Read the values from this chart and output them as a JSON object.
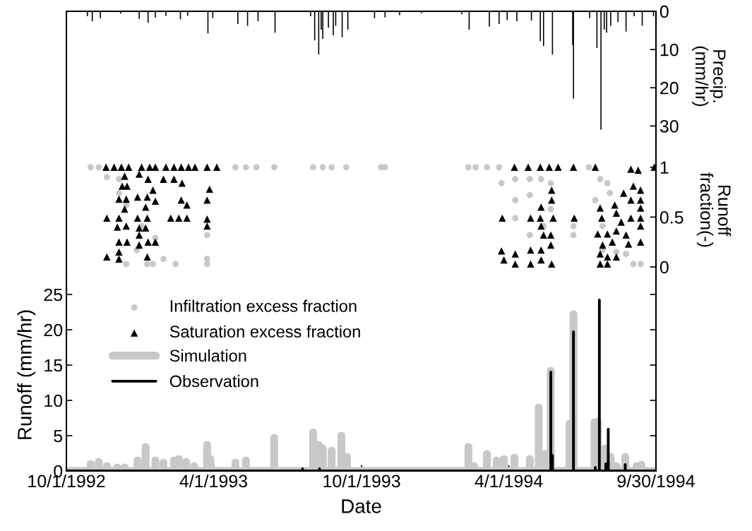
{
  "chart_data": [
    {
      "type": "bar",
      "ylabel": "Precip.\n(mm/hr)",
      "xlim": [
        "1992-10-01",
        "1994-09-30"
      ],
      "ylim": [
        34,
        0
      ],
      "yticks": [
        0,
        10,
        20,
        30
      ],
      "tick_labels": "y",
      "series": [
        {
          "color": "#000000",
          "x": [
            "1992-10-27",
            "1992-11-02",
            "1992-11-12",
            "1992-12-07",
            "1992-12-30",
            "1993-01-10",
            "1993-01-19",
            "1993-02-01",
            "1993-02-19",
            "1993-02-28",
            "1993-03-25",
            "1993-03-31",
            "1993-05-01",
            "1993-05-13",
            "1993-05-26",
            "1993-06-16",
            "1993-07-30",
            "1993-08-04",
            "1993-08-09",
            "1993-08-12",
            "1993-08-14",
            "1993-08-21",
            "1993-08-27",
            "1993-08-30",
            "1993-09-07",
            "1993-09-14",
            "1993-10-17",
            "1993-10-30",
            "1993-11-17",
            "1993-12-14",
            "1994-02-02",
            "1994-02-11",
            "1994-03-08",
            "1994-03-20",
            "1994-03-30",
            "1994-04-11",
            "1994-04-29",
            "1994-05-10",
            "1994-05-14",
            "1994-05-25",
            "1994-06-19",
            "1994-06-20",
            "1994-07-10",
            "1994-07-19",
            "1994-07-24",
            "1994-07-28",
            "1994-07-31",
            "1994-08-05",
            "1994-08-14",
            "1994-08-24",
            "1994-09-03",
            "1994-09-13",
            "1994-09-27"
          ],
          "values": [
            1.3,
            2.6,
            1.8,
            0.6,
            2.0,
            3.0,
            1.6,
            1.2,
            2.1,
            1.2,
            5.8,
            1.8,
            3.3,
            3.8,
            2.6,
            5.6,
            1.3,
            7.6,
            11.3,
            4.8,
            7.2,
            4.3,
            6.3,
            3.8,
            6.8,
            4.8,
            1.8,
            1.6,
            1.0,
            0.5,
            0.8,
            4.8,
            4.0,
            3.3,
            2.3,
            2.6,
            2.4,
            7.8,
            9.1,
            11.3,
            8.8,
            22.8,
            1.8,
            9.6,
            31.0,
            4.8,
            5.6,
            3.8,
            2.8,
            5.3,
            1.3,
            3.8,
            1.3
          ]
        }
      ]
    },
    {
      "type": "scatter",
      "legend": "bottom left",
      "ylabel": "Runoff\nfraction(-)",
      "xlim": [
        "1992-10-01",
        "1994-09-30"
      ],
      "ylim": [
        -0.12,
        1.26
      ],
      "yticks": [
        0,
        0.5,
        1
      ],
      "tick_labels": "y",
      "series": [
        {
          "name": "Infiltration excess fraction",
          "color": "#c8c8c8",
          "marker": "circle",
          "x": [
            "1992-10-31",
            "1992-11-10",
            "1992-11-20",
            "1992-12-05",
            "1992-12-05",
            "1992-12-14",
            "1992-12-14",
            "1992-12-27",
            "1993-01-02",
            "1993-01-09",
            "1993-01-16",
            "1993-01-19",
            "1993-01-29",
            "1993-02-13",
            "1993-03-24",
            "1993-03-24",
            "1993-03-24",
            "1993-04-28",
            "1993-05-11",
            "1993-05-24",
            "1993-06-15",
            "1993-08-02",
            "1993-08-14",
            "1993-08-25",
            "1993-09-12",
            "1993-10-25",
            "1993-10-30",
            "1994-02-10",
            "1994-02-19",
            "1994-03-05",
            "1994-03-20",
            "1994-03-23",
            "1994-04-09",
            "1994-04-09",
            "1994-04-09",
            "1994-04-27",
            "1994-04-27",
            "1994-05-11",
            "1994-05-23",
            "1994-05-23",
            "1994-04-27",
            "1994-05-14",
            "1994-06-20",
            "1994-06-20",
            "1994-07-09",
            "1994-07-17",
            "1994-07-23",
            "1994-08-01",
            "1994-08-04",
            "1994-07-26",
            "1994-07-26",
            "1994-08-12",
            "1994-08-24",
            "1994-09-02",
            "1994-09-11"
          ],
          "values": [
            1,
            1,
            0.9,
            0.88,
            0.74,
            0.03,
            0.62,
            0.17,
            0.41,
            0.03,
            0.03,
            0.29,
            0.08,
            0.03,
            0.32,
            0.08,
            0.03,
            1,
            1,
            1,
            1,
            1,
            1,
            1,
            1,
            1,
            1,
            1,
            1,
            1,
            1,
            0.84,
            0.88,
            0.67,
            0.49,
            0.88,
            0.72,
            0.88,
            0.84,
            0.58,
            0.32,
            0.41,
            0.41,
            0.32,
            1,
            0.67,
            0.88,
            0.84,
            0.74,
            0.41,
            0.17,
            0.15,
            0.13,
            0.03,
            0.03
          ]
        },
        {
          "name": "Saturation excess fraction",
          "color": "#000000",
          "marker": "triangle",
          "x": [
            "1992-11-19",
            "1992-11-29",
            "1992-12-08",
            "1992-12-17",
            "1993-01-02",
            "1993-01-12",
            "1993-01-19",
            "1993-02-01",
            "1993-02-11",
            "1993-02-20",
            "1993-03-01",
            "1993-03-09",
            "1993-03-24",
            "1993-04-05",
            "1992-12-12",
            "1992-12-09",
            "1992-12-15",
            "1992-12-30",
            "1993-01-10",
            "1993-01-16",
            "1993-01-29",
            "1993-02-11",
            "1993-02-21",
            "1993-03-27",
            "1992-12-05",
            "1992-12-14",
            "1992-12-28",
            "1993-01-09",
            "1993-01-19",
            "1993-02-20",
            "1993-02-27",
            "1993-03-24",
            "1992-12-12",
            "1993-01-07",
            "1992-11-20",
            "1992-12-05",
            "1992-12-28",
            "1993-01-09",
            "1993-02-07",
            "1993-02-17",
            "1993-02-27",
            "1993-03-24",
            "1992-12-03",
            "1992-12-14",
            "1992-12-30",
            "1993-01-07",
            "1993-03-24",
            "1992-12-05",
            "1992-12-15",
            "1992-12-30",
            "1993-01-10",
            "1993-01-19",
            "1992-11-20",
            "1992-12-05",
            "1992-12-30",
            "1993-01-09",
            "1992-12-05",
            "1994-03-24",
            "1994-04-08",
            "1994-04-25",
            "1994-05-10",
            "1994-05-21",
            "1994-06-01",
            "1994-06-20",
            "1994-07-17",
            "1994-08-30",
            "1994-09-08",
            "1994-09-28",
            "1994-05-24",
            "1994-05-24",
            "1994-05-11",
            "1994-04-28",
            "1994-05-10",
            "1994-05-26",
            "1994-06-21",
            "1994-05-11",
            "1994-05-14",
            "1994-05-23",
            "1994-03-23",
            "1994-03-26",
            "1994-04-09",
            "1994-04-09",
            "1994-04-28",
            "1994-04-28",
            "1994-05-11",
            "1994-05-11",
            "1994-05-23",
            "1994-05-24",
            "1994-07-23",
            "1994-07-25",
            "1994-08-10",
            "1994-08-12",
            "1994-08-21",
            "1994-08-30",
            "1994-09-02",
            "1994-09-11",
            "1994-09-11",
            "1994-09-11",
            "1994-09-11",
            "1994-08-30",
            "1994-08-18",
            "1994-09-11",
            "1994-07-20",
            "1994-08-01",
            "1994-08-12",
            "1994-08-24",
            "1994-09-11",
            "1994-07-26",
            "1994-08-07",
            "1994-08-27",
            "1994-07-23",
            "1994-08-01",
            "1994-08-12",
            "1994-07-23",
            "1994-08-01"
          ],
          "values": [
            1,
            1,
            1,
            1,
            1,
            1,
            1,
            1,
            1,
            1,
            1,
            1,
            1,
            1,
            0.91,
            0.81,
            0.81,
            0.93,
            0.88,
            0.77,
            0.88,
            0.88,
            0.84,
            0.78,
            0.68,
            0.68,
            0.7,
            0.7,
            0.66,
            0.67,
            0.62,
            0.67,
            0.58,
            0.6,
            0.49,
            0.49,
            0.49,
            0.49,
            0.49,
            0.49,
            0.49,
            0.48,
            0.4,
            0.41,
            0.39,
            0.39,
            0.41,
            0.25,
            0.25,
            0.22,
            0.25,
            0.25,
            0.1,
            0.08,
            0.32,
            0.1,
            0.15,
            0.49,
            1,
            1,
            1,
            1,
            1,
            1,
            1,
            0.98,
            0.97,
            1,
            0.77,
            0.67,
            0.6,
            0.49,
            0.49,
            0.49,
            0.49,
            0.41,
            0.32,
            0.32,
            0.16,
            0.07,
            0.13,
            0.03,
            0.17,
            0.03,
            0.17,
            0.07,
            0.22,
            0.03,
            0.59,
            0.49,
            0.62,
            0.54,
            0.74,
            0.67,
            0.81,
            0.77,
            0.67,
            0.59,
            0.49,
            0.49,
            0.45,
            0.41,
            0.33,
            0.33,
            0.36,
            0.32,
            0.25,
            0.22,
            0.25,
            0.23,
            0.13,
            0.1,
            0.1,
            0.03,
            0.03
          ]
        }
      ]
    },
    {
      "type": "line",
      "xlabel": "Date",
      "ylabel": "Runoff (mm/hr)",
      "xlim": [
        "1992-10-01",
        "1994-09-30"
      ],
      "ylim": [
        0,
        27.2
      ],
      "yticks": [
        0,
        5,
        10,
        15,
        20,
        25
      ],
      "xticks": [
        {
          "value": "1992-10-01",
          "label": "10/1/1992"
        },
        {
          "value": "1993-04-01",
          "label": "4/1/1993"
        },
        {
          "value": "1993-10-01",
          "label": "10/1/1993"
        },
        {
          "value": "1994-04-01",
          "label": "4/1/1994"
        },
        {
          "value": "1994-09-30",
          "label": "9/30/1994"
        }
      ],
      "legend": "top left",
      "series": [
        {
          "name": "Simulation",
          "color": "#c8c8c8",
          "line_style": "solid",
          "x": [
            "1992-10-01",
            "1992-10-31",
            "1992-10-31",
            "1992-10-31",
            "1992-11-10",
            "1992-11-10",
            "1992-11-10",
            "1992-11-20",
            "1992-11-20",
            "1992-11-20",
            "1992-12-03",
            "1992-12-03",
            "1992-12-03",
            "1992-12-12",
            "1992-12-12",
            "1992-12-12",
            "1992-12-28",
            "1992-12-28",
            "1992-12-28",
            "1993-01-07",
            "1993-01-07",
            "1993-01-07",
            "1993-01-19",
            "1993-01-19",
            "1993-01-19",
            "1993-01-29",
            "1993-01-29",
            "1993-01-29",
            "1993-02-11",
            "1993-02-11",
            "1993-02-11",
            "1993-02-17",
            "1993-02-17",
            "1993-02-17",
            "1993-02-26",
            "1993-02-26",
            "1993-02-26",
            "1993-03-08",
            "1993-03-08",
            "1993-03-08",
            "1993-03-24",
            "1993-03-24",
            "1993-03-24",
            "1993-03-28",
            "1993-03-28",
            "1993-03-28",
            "1993-04-28",
            "1993-04-28",
            "1993-04-28",
            "1993-05-11",
            "1993-05-11",
            "1993-05-11",
            "1993-06-15",
            "1993-06-15",
            "1993-06-15",
            "1993-08-02",
            "1993-08-02",
            "1993-08-02",
            "1993-08-09",
            "1993-08-09",
            "1993-08-09",
            "1993-08-14",
            "1993-08-14",
            "1993-08-14",
            "1993-08-25",
            "1993-08-25",
            "1993-08-25",
            "1993-09-06",
            "1993-09-06",
            "1993-09-06",
            "1993-09-13",
            "1993-09-13",
            "1993-09-13",
            "1994-02-10",
            "1994-02-10",
            "1994-02-10",
            "1994-02-17",
            "1994-02-17",
            "1994-02-17",
            "1994-03-05",
            "1994-03-05",
            "1994-03-05",
            "1994-03-17",
            "1994-03-17",
            "1994-03-17",
            "1994-03-26",
            "1994-03-26",
            "1994-03-26",
            "1994-04-08",
            "1994-04-08",
            "1994-04-08",
            "1994-04-27",
            "1994-04-27",
            "1994-04-27",
            "1994-05-08",
            "1994-05-08",
            "1994-05-08",
            "1994-05-16",
            "1994-05-16",
            "1994-05-16",
            "1994-05-23",
            "1994-05-23",
            "1994-05-23",
            "1994-06-15",
            "1994-06-15",
            "1994-06-15",
            "1994-06-20",
            "1994-06-20",
            "1994-06-20",
            "1994-07-16",
            "1994-07-16",
            "1994-07-16",
            "1994-07-20",
            "1994-07-20",
            "1994-07-20",
            "1994-07-29",
            "1994-07-29",
            "1994-07-29",
            "1994-08-05",
            "1994-08-05",
            "1994-08-05",
            "1994-08-12",
            "1994-08-12",
            "1994-08-12",
            "1994-08-23",
            "1994-08-23",
            "1994-08-23",
            "1994-09-06",
            "1994-09-06",
            "1994-09-06",
            "1994-09-12",
            "1994-09-12",
            "1994-09-12",
            "1994-09-30"
          ],
          "values": [
            0,
            0,
            1.0,
            0,
            0,
            1.3,
            0,
            0,
            0.7,
            0,
            0,
            0.5,
            0,
            0,
            0.5,
            0,
            0,
            1.5,
            0,
            0,
            3.4,
            0,
            0,
            1.5,
            0,
            0,
            1.2,
            0,
            0,
            1.5,
            0,
            0,
            1.7,
            0,
            0,
            1.3,
            0,
            0,
            0.7,
            0,
            0,
            3.7,
            0,
            0,
            1.7,
            0,
            0,
            1.2,
            0,
            0,
            1.5,
            0,
            0,
            4.7,
            0,
            0,
            5.5,
            0,
            0,
            3.7,
            0,
            0,
            3.2,
            0,
            0,
            2.9,
            0,
            0,
            5.0,
            0,
            0,
            2.0,
            0,
            0,
            3.4,
            0,
            0,
            0.7,
            0,
            0,
            2.4,
            0,
            0,
            1.5,
            0,
            0,
            1.7,
            0,
            0,
            1.9,
            0,
            0,
            1.7,
            0,
            0,
            9.0,
            0,
            0,
            2.4,
            0,
            0,
            14.2,
            0,
            0,
            6.7,
            0,
            0,
            22.2,
            0,
            0,
            6.9,
            0,
            0,
            7.0,
            0,
            0,
            3.2,
            0,
            0,
            2.0,
            0,
            0,
            0.7,
            0,
            0,
            2.0,
            0,
            0,
            0.7,
            0,
            0,
            0.9,
            0,
            0
          ]
        },
        {
          "name": "Observation",
          "color": "#000000",
          "line_style": "solid",
          "x": [
            "1992-10-01",
            "1993-07-20",
            "1993-07-20",
            "1993-07-20",
            "1993-08-10",
            "1993-08-10",
            "1993-08-10",
            "1994-05-23",
            "1994-05-23",
            "1994-05-23",
            "1994-05-25",
            "1994-05-25",
            "1994-05-25",
            "1994-06-20",
            "1994-06-20",
            "1994-06-20",
            "1994-07-17",
            "1994-07-17",
            "1994-07-17",
            "1994-07-22",
            "1994-07-22",
            "1994-07-22",
            "1994-07-30",
            "1994-07-30",
            "1994-07-30",
            "1994-08-02",
            "1994-08-02",
            "1994-08-02",
            "1994-08-23",
            "1994-08-23",
            "1994-08-23",
            "1994-09-30"
          ],
          "values": [
            0,
            0,
            0.3,
            0,
            0,
            0.3,
            0,
            0,
            14.0,
            0,
            0,
            2.2,
            0,
            0,
            19.7,
            0,
            0,
            0.5,
            0,
            0,
            24.2,
            0,
            0,
            1.0,
            0,
            0,
            5.9,
            0,
            0,
            0.9,
            0,
            0
          ]
        }
      ]
    }
  ]
}
